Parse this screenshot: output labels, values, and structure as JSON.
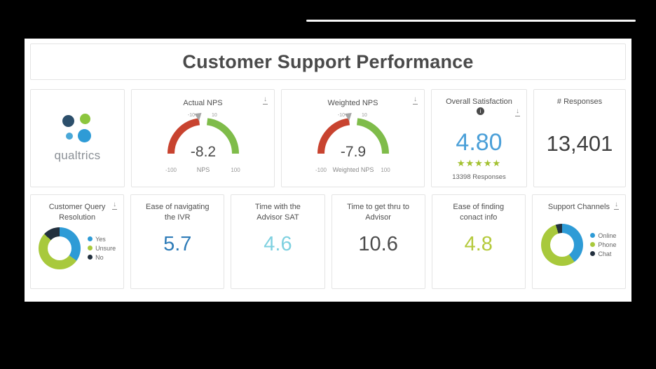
{
  "title": "Customer Support Performance",
  "brand": {
    "logo_text": "qualtrics"
  },
  "icons": {
    "download_glyph": "↓",
    "info_glyph": "i"
  },
  "colors": {
    "background": "#000000",
    "panel": "#ffffff",
    "card_border": "#e4e4e4",
    "title_text": "#4a4a4a",
    "accent_blue": "#2e9bd6",
    "accent_green": "#a8c93c",
    "accent_dark": "#22303e"
  },
  "cards": {
    "overall_satisfaction": {
      "title": "Overall Satisfaction",
      "value": "4.80",
      "color": "#4a9fd8",
      "rating": 4.8,
      "stars_total": 5,
      "stars_glyphs": "★★★★★",
      "star_fill_color": "#a3c130",
      "responses_label": "13398 Responses"
    },
    "responses": {
      "title": "# Responses",
      "value": "13,401",
      "color": "#3f3f3f"
    },
    "ivr": {
      "title": "Ease of navigating the IVR",
      "value": "5.7",
      "color": "#2e7cb8"
    },
    "advisor_sat": {
      "title": "Time with the Advisor SAT",
      "value": "4.6",
      "color": "#7fd1e0"
    },
    "time_to_advisor": {
      "title": "Time to get thru to Advisor",
      "value": "10.6",
      "color": "#4d4d4d"
    },
    "finding_info": {
      "title": "Ease of finding conact info",
      "value": "4.8",
      "color": "#b5ca3d"
    }
  },
  "chart_data": [
    {
      "type": "gauge",
      "title": "Actual NPS",
      "value": -8.2,
      "display": "-8.2",
      "axis_label": "NPS",
      "min": -100,
      "max": 100,
      "top_ticks": [
        "-10",
        "10"
      ],
      "range_labels": [
        "-100",
        "100"
      ],
      "colors": {
        "negative": "#c8432f",
        "positive": "#7fbc4a",
        "needle": "#a6a6a6"
      }
    },
    {
      "type": "gauge",
      "title": "Weighted NPS",
      "value": -7.9,
      "display": "-7.9",
      "axis_label": "Weighted NPS",
      "min": -100,
      "max": 100,
      "top_ticks": [
        "-10",
        "10"
      ],
      "range_labels": [
        "-100",
        "100"
      ],
      "colors": {
        "negative": "#c8432f",
        "positive": "#7fbc4a",
        "needle": "#a6a6a6"
      }
    },
    {
      "type": "donut",
      "title": "Customer Query Resolution",
      "units": "percent_estimated",
      "legend_position": "right",
      "segments": [
        {
          "label": "Yes",
          "value": 35,
          "color": "#2e9bd6"
        },
        {
          "label": "Unsure",
          "value": 52,
          "color": "#a8c93c"
        },
        {
          "label": "No",
          "value": 13,
          "color": "#22303e"
        }
      ]
    },
    {
      "type": "donut",
      "title": "Support Channels",
      "units": "percent_estimated",
      "legend_position": "right",
      "segments": [
        {
          "label": "Online",
          "value": 40,
          "color": "#2e9bd6"
        },
        {
          "label": "Phone",
          "value": 55,
          "color": "#a8c93c"
        },
        {
          "label": "Chat",
          "value": 5,
          "color": "#22303e"
        }
      ]
    }
  ]
}
